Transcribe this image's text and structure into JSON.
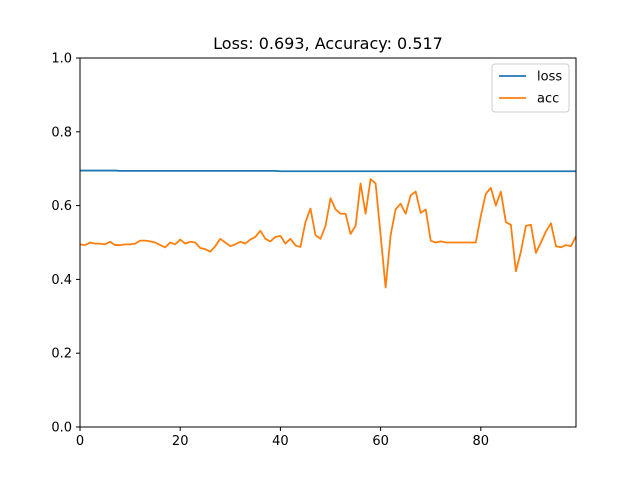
{
  "chart_data": {
    "type": "line",
    "title": "Loss: 0.693, Accuracy: 0.517",
    "xlabel": "",
    "ylabel": "",
    "xlim": [
      0,
      99
    ],
    "ylim": [
      0,
      1.0
    ],
    "x_ticks": [
      0,
      20,
      40,
      60,
      80
    ],
    "x_tick_labels": [
      "0",
      "20",
      "40",
      "60",
      "80"
    ],
    "y_ticks": [
      0.0,
      0.2,
      0.4,
      0.6,
      0.8,
      1.0
    ],
    "y_tick_labels": [
      "0.0",
      "0.2",
      "0.4",
      "0.6",
      "0.8",
      "1.0"
    ],
    "grid": false,
    "legend_position": "top-right",
    "series": [
      {
        "name": "loss",
        "color": "#1f77b4",
        "values": [
          0.695,
          0.695,
          0.695,
          0.695,
          0.695,
          0.695,
          0.695,
          0.695,
          0.694,
          0.694,
          0.694,
          0.694,
          0.694,
          0.694,
          0.694,
          0.694,
          0.694,
          0.694,
          0.694,
          0.694,
          0.694,
          0.694,
          0.694,
          0.694,
          0.694,
          0.694,
          0.694,
          0.694,
          0.694,
          0.694,
          0.694,
          0.694,
          0.694,
          0.694,
          0.694,
          0.694,
          0.694,
          0.694,
          0.694,
          0.694,
          0.693,
          0.693,
          0.693,
          0.693,
          0.693,
          0.693,
          0.693,
          0.693,
          0.693,
          0.693,
          0.693,
          0.693,
          0.693,
          0.693,
          0.693,
          0.693,
          0.693,
          0.693,
          0.693,
          0.693,
          0.693,
          0.693,
          0.693,
          0.693,
          0.693,
          0.693,
          0.693,
          0.693,
          0.693,
          0.693,
          0.693,
          0.693,
          0.693,
          0.693,
          0.693,
          0.693,
          0.693,
          0.693,
          0.693,
          0.693,
          0.693,
          0.693,
          0.693,
          0.693,
          0.693,
          0.693,
          0.693,
          0.693,
          0.693,
          0.693,
          0.693,
          0.693,
          0.693,
          0.693,
          0.693,
          0.693,
          0.693,
          0.693,
          0.693,
          0.693
        ]
      },
      {
        "name": "acc",
        "color": "#ff7f0e",
        "values": [
          0.495,
          0.493,
          0.5,
          0.497,
          0.497,
          0.495,
          0.502,
          0.493,
          0.493,
          0.495,
          0.495,
          0.497,
          0.505,
          0.505,
          0.503,
          0.5,
          0.493,
          0.487,
          0.5,
          0.495,
          0.508,
          0.497,
          0.502,
          0.5,
          0.485,
          0.482,
          0.475,
          0.49,
          0.51,
          0.5,
          0.49,
          0.495,
          0.502,
          0.497,
          0.508,
          0.515,
          0.532,
          0.51,
          0.503,
          0.515,
          0.518,
          0.497,
          0.51,
          0.492,
          0.488,
          0.555,
          0.592,
          0.52,
          0.51,
          0.545,
          0.62,
          0.59,
          0.578,
          0.578,
          0.523,
          0.545,
          0.66,
          0.578,
          0.672,
          0.66,
          0.52,
          0.378,
          0.52,
          0.59,
          0.605,
          0.578,
          0.628,
          0.638,
          0.58,
          0.59,
          0.505,
          0.5,
          0.503,
          0.5,
          0.5,
          0.5,
          0.5,
          0.5,
          0.5,
          0.5,
          0.572,
          0.632,
          0.648,
          0.6,
          0.638,
          0.555,
          0.548,
          0.422,
          0.475,
          0.545,
          0.548,
          0.472,
          0.5,
          0.53,
          0.552,
          0.49,
          0.487,
          0.493,
          0.49,
          0.517
        ]
      }
    ]
  }
}
